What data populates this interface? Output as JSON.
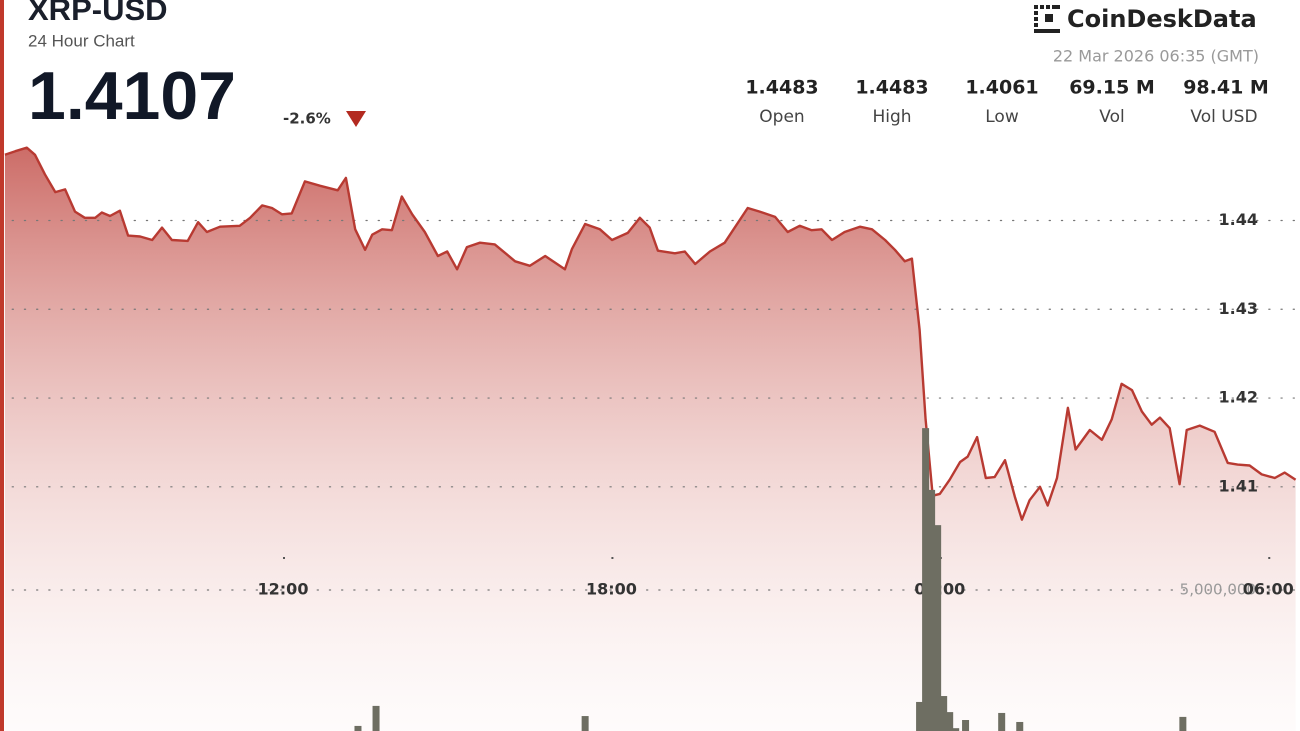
{
  "header": {
    "symbol": "XRP-USD",
    "subtitle": "24 Hour Chart",
    "price": "1.4107",
    "change": "-2.6%",
    "brand": "CoinDeskData",
    "timestamp": "22 Mar 2026 06:35 (GMT)"
  },
  "stats": [
    {
      "value": "1.4483",
      "label": "Open"
    },
    {
      "value": "1.4483",
      "label": "High"
    },
    {
      "value": "1.4061",
      "label": "Low"
    },
    {
      "value": "69.15 M",
      "label": "Vol"
    },
    {
      "value": "98.41 M",
      "label": "Vol USD"
    }
  ],
  "chart_data": {
    "type": "area",
    "color": "#b83a32",
    "x": [
      6.92,
      7.11,
      7.32,
      7.47,
      7.65,
      7.84,
      8.02,
      8.2,
      8.38,
      8.57,
      8.69,
      8.84,
      9.02,
      9.17,
      9.39,
      9.61,
      9.79,
      9.97,
      10.26,
      10.45,
      10.61,
      10.85,
      11.21,
      11.4,
      11.62,
      11.8,
      11.98,
      12.16,
      12.4,
      12.68,
      13.0,
      13.15,
      13.32,
      13.5,
      13.63,
      13.81,
      13.99,
      14.17,
      14.36,
      14.59,
      14.83,
      15.0,
      15.18,
      15.36,
      15.6,
      15.87,
      16.24,
      16.51,
      16.79,
      16.91,
      17.15,
      17.28,
      17.52,
      17.79,
      18.01,
      18.3,
      18.52,
      18.7,
      18.85,
      19.16,
      19.34,
      19.53,
      19.8,
      20.07,
      20.49,
      20.71,
      20.99,
      21.22,
      21.44,
      21.66,
      21.84,
      22.03,
      22.26,
      22.54,
      22.76,
      23.0,
      23.18,
      23.36,
      23.49,
      23.63,
      23.74,
      23.87,
      24.0,
      24.18,
      24.37,
      24.51,
      24.68,
      24.84,
      25.0,
      25.19,
      25.37,
      25.5,
      25.64,
      25.83,
      25.97,
      26.14,
      26.34,
      26.48,
      26.74,
      26.96,
      27.14,
      27.32,
      27.51,
      27.69,
      27.87,
      28.02,
      28.2,
      28.38,
      28.51,
      28.75,
      29.02,
      29.26,
      29.44,
      29.66,
      29.88,
      30.12,
      30.3,
      30.5
    ],
    "values": [
      1.4474,
      1.4478,
      1.4482,
      1.4474,
      1.4452,
      1.4432,
      1.4435,
      1.441,
      1.4403,
      1.4403,
      1.4409,
      1.4405,
      1.4411,
      1.4383,
      1.4382,
      1.4378,
      1.4392,
      1.4378,
      1.4377,
      1.4398,
      1.4387,
      1.4393,
      1.4394,
      1.4403,
      1.4417,
      1.4414,
      1.4407,
      1.4408,
      1.4444,
      1.4439,
      1.4434,
      1.4448,
      1.439,
      1.4367,
      1.4384,
      1.439,
      1.4389,
      1.4427,
      1.4407,
      1.4387,
      1.436,
      1.4365,
      1.4345,
      1.437,
      1.4375,
      1.4373,
      1.4354,
      1.4349,
      1.436,
      1.4355,
      1.4345,
      1.4368,
      1.4396,
      1.439,
      1.4378,
      1.4386,
      1.4403,
      1.4392,
      1.4366,
      1.4363,
      1.4365,
      1.4351,
      1.4365,
      1.4375,
      1.4414,
      1.441,
      1.4404,
      1.4387,
      1.4394,
      1.4389,
      1.439,
      1.4378,
      1.4387,
      1.4393,
      1.439,
      1.4378,
      1.4367,
      1.4354,
      1.4357,
      1.4277,
      1.4176,
      1.409,
      1.4092,
      1.4108,
      1.4128,
      1.4134,
      1.4156,
      1.411,
      1.4111,
      1.413,
      1.4089,
      1.4063,
      1.4085,
      1.41,
      1.4079,
      1.411,
      1.4189,
      1.4142,
      1.4164,
      1.4153,
      1.4176,
      1.4216,
      1.4209,
      1.4185,
      1.417,
      1.4178,
      1.4166,
      1.4103,
      1.4164,
      1.4169,
      1.4162,
      1.4127,
      1.4125,
      1.4124,
      1.4114,
      1.411,
      1.4116,
      1.4108
    ],
    "xlim": [
      6.83,
      30.58
    ],
    "xticks": [
      {
        "value": 12,
        "label": "12:00"
      },
      {
        "value": 18,
        "label": "18:00"
      },
      {
        "value": 24,
        "label": "00:00"
      },
      {
        "value": 30,
        "label": "06:00"
      }
    ],
    "ylim": [
      1.3825,
      1.4485
    ],
    "yticks": [
      1.41,
      1.42,
      1.43,
      1.44
    ],
    "y2lim": [
      0,
      20780000
    ],
    "y2ticks": [
      {
        "value": 5000000,
        "label": "5,000,000"
      }
    ],
    "grid": true,
    "volume": {
      "type": "bar",
      "axis": "y2",
      "color": "#6e6e62",
      "x": [
        13.37,
        13.7,
        17.52,
        23.63,
        23.74,
        23.85,
        23.96,
        24.07,
        24.18,
        24.29,
        24.47,
        25.13,
        25.46,
        28.44
      ],
      "values": [
        180000,
        890000,
        530000,
        1030000,
        10740000,
        8550000,
        7300000,
        1240000,
        670000,
        100000,
        390000,
        640000,
        320000,
        500000
      ]
    }
  }
}
